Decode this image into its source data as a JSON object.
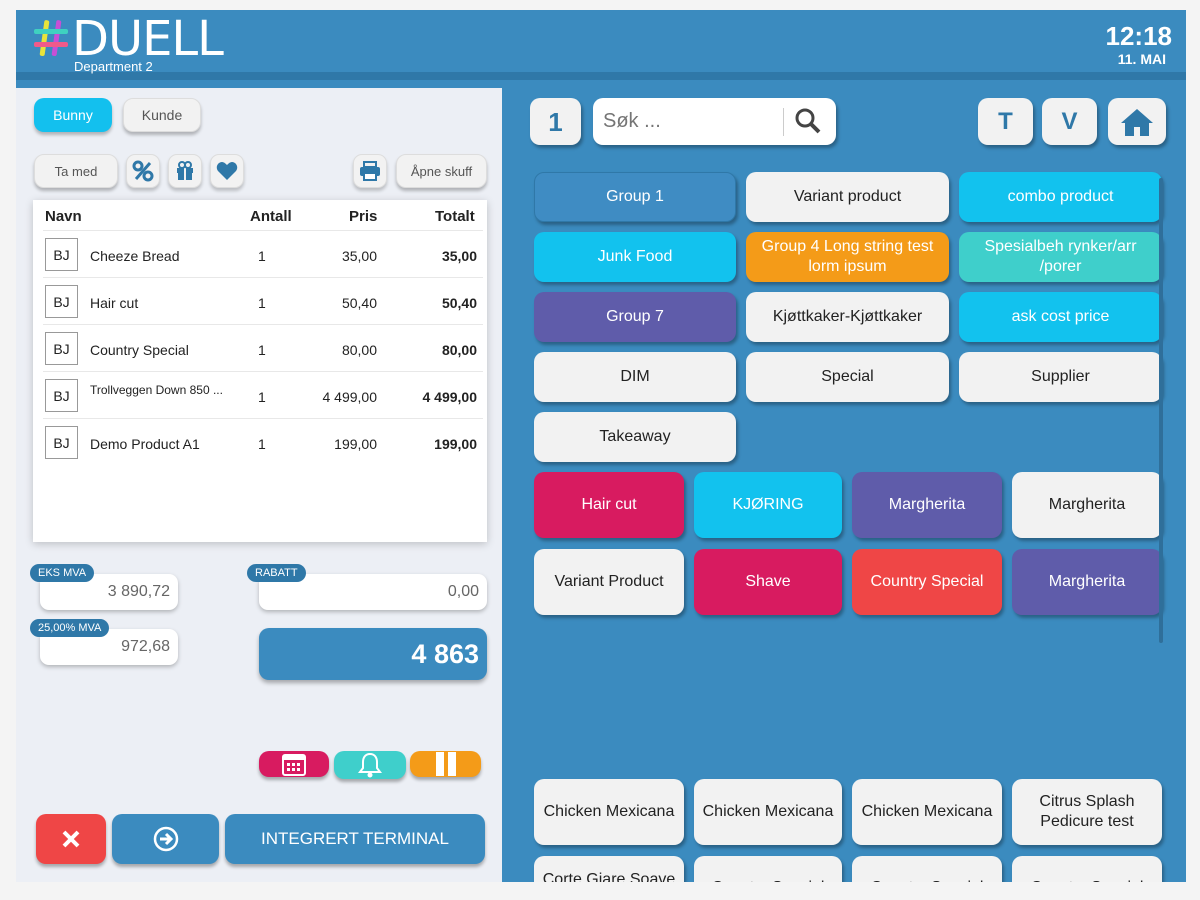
{
  "header": {
    "brand": "DUELL",
    "department": "Department 2",
    "time": "12:18",
    "date": "11. MAI"
  },
  "left": {
    "tabs": {
      "active": "Bunny",
      "customer": "Kunde"
    },
    "actions": {
      "takeaway": "Ta med",
      "open_drawer": "Åpne skuff"
    },
    "icons": [
      "percent-icon",
      "gift-icon",
      "heart-icon",
      "printer-icon"
    ],
    "table": {
      "headers": {
        "name": "Navn",
        "qty": "Antall",
        "price": "Pris",
        "total": "Totalt"
      },
      "rows": [
        {
          "initials": "BJ",
          "name": "Cheeze Bread",
          "qty": "1",
          "price": "35,00",
          "total": "35,00"
        },
        {
          "initials": "BJ",
          "name": "Hair cut",
          "qty": "1",
          "price": "50,40",
          "total": "50,40"
        },
        {
          "initials": "BJ",
          "name": "Country Special",
          "qty": "1",
          "price": "80,00",
          "total": "80,00"
        },
        {
          "initials": "BJ",
          "name": "Trollveggen Down 850 ...",
          "qty": "1",
          "price": "4 499,00",
          "total": "4 499,00"
        },
        {
          "initials": "BJ",
          "name": "Demo Product A1",
          "qty": "1",
          "price": "199,00",
          "total": "199,00"
        }
      ]
    },
    "summary": {
      "ex_vat_label": "EKS MVA",
      "ex_vat_value": "3 890,72",
      "discount_label": "RABATT",
      "discount_value": "0,00",
      "vat_label": "25,00% MVA",
      "vat_value": "972,68",
      "total": "4 863"
    },
    "bottom": {
      "terminal": "INTEGRERT TERMINAL",
      "colors": {
        "calendar": "#d81b60",
        "bell": "#3fcfcb",
        "pause": "#f49b18",
        "cancel": "#ef4646",
        "next": "#3b8bbf"
      }
    }
  },
  "right": {
    "top": {
      "qty": "1",
      "search_placeholder": "Søk ...",
      "btn_t": "T",
      "btn_v": "V"
    },
    "groups": [
      {
        "label": "Group 1",
        "style": "blue"
      },
      {
        "label": "Variant product",
        "style": "white"
      },
      {
        "label": "combo product",
        "style": "cyan"
      },
      {
        "label": "Junk Food",
        "style": "cyan"
      },
      {
        "label": "Group 4 Long string test lorm ipsum",
        "style": "orange"
      },
      {
        "label": "Spesialbeh rynker/arr /porer",
        "style": "teal"
      },
      {
        "label": "Group 7",
        "style": "purple"
      },
      {
        "label": "Kjøttkaker-Kjøttkaker",
        "style": "white"
      },
      {
        "label": "ask cost price",
        "style": "cyan"
      },
      {
        "label": "DIM",
        "style": "white"
      },
      {
        "label": "Special",
        "style": "white"
      },
      {
        "label": "Supplier",
        "style": "white"
      },
      {
        "label": "Takeaway",
        "style": "white"
      }
    ],
    "products": [
      {
        "label": "Hair cut",
        "style": "pink"
      },
      {
        "label": "KJØRING",
        "style": "cyan"
      },
      {
        "label": "Margherita",
        "style": "purple"
      },
      {
        "label": "Margherita",
        "style": "white"
      },
      {
        "label": "Variant Product",
        "style": "white"
      },
      {
        "label": "Shave",
        "style": "pink"
      },
      {
        "label": "Country Special",
        "style": "red"
      },
      {
        "label": "Margherita",
        "style": "purple"
      }
    ],
    "bottom_products": [
      "Chicken Mexicana",
      "Chicken Mexicana",
      "Chicken Mexicana",
      "Citrus Splash Pedicure test",
      "Corte Giare Soave",
      "Country Special",
      "Country Special",
      "Country Special"
    ]
  }
}
